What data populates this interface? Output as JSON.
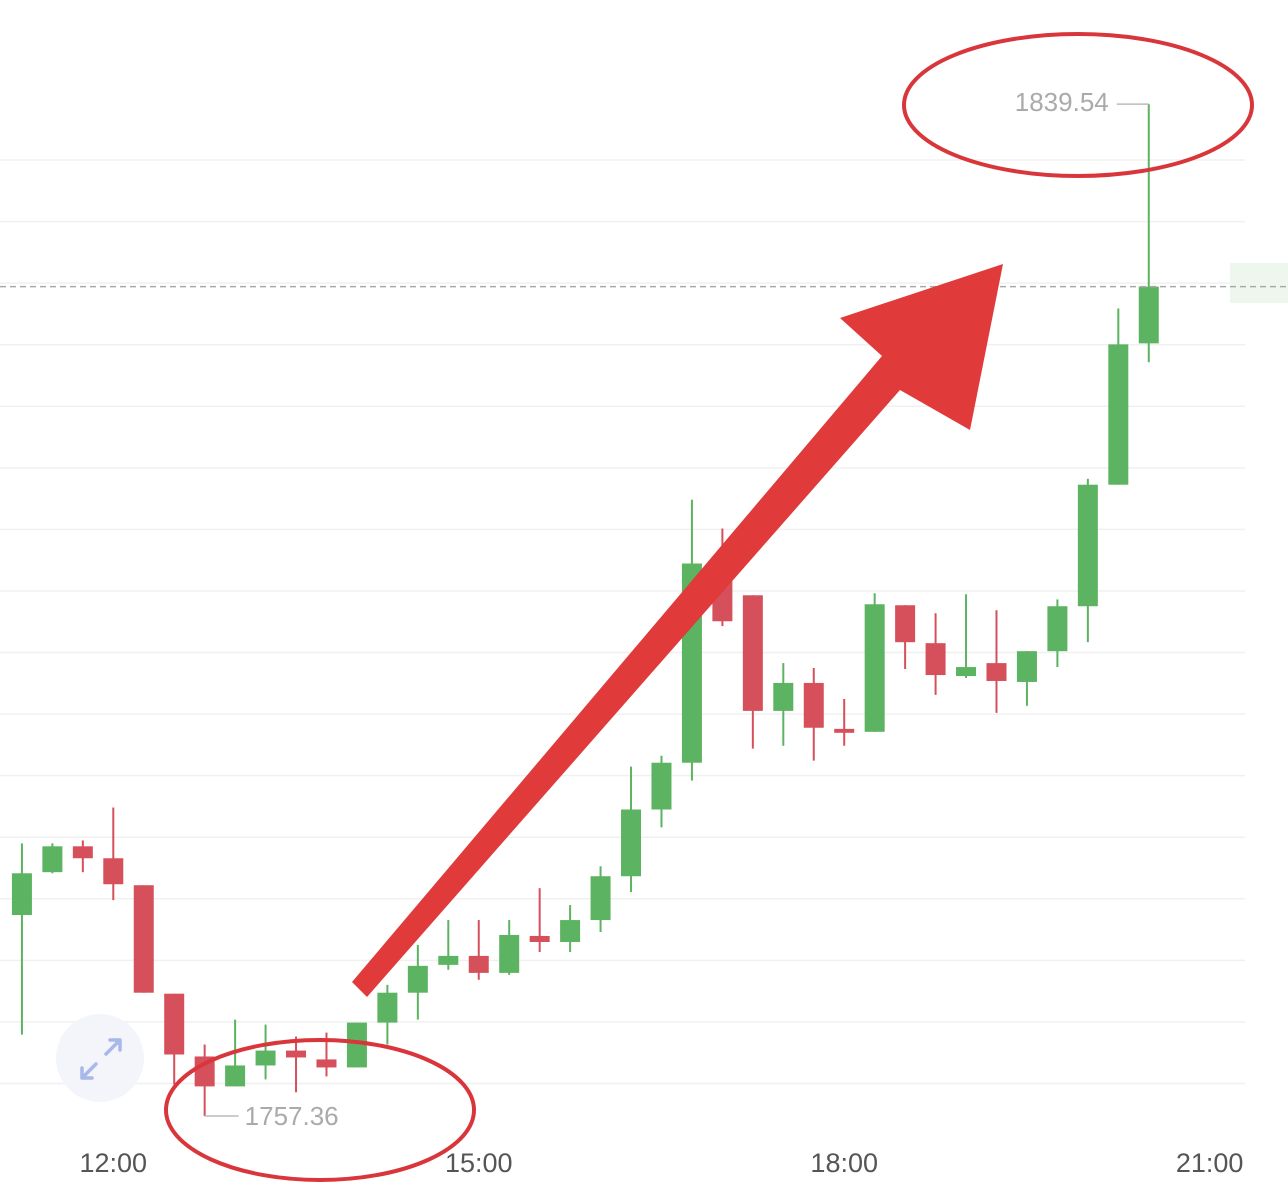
{
  "chart_data": {
    "type": "candlestick",
    "x": [
      11.25,
      11.5,
      11.75,
      12,
      12.25,
      12.5,
      12.75,
      13,
      13.25,
      13.5,
      13.75,
      14,
      14.25,
      14.5,
      14.75,
      15,
      15.25,
      15.5,
      15.75,
      16,
      16.25,
      16.5,
      16.75,
      17,
      17.25,
      17.5,
      17.75,
      18,
      18.25,
      18.5,
      18.75,
      19,
      19.25,
      19.5,
      19.75,
      20,
      20.25,
      20.5
    ],
    "open": [
      1773.68,
      1777.16,
      1779.26,
      1778.29,
      1776.1,
      1767.29,
      1762.19,
      1759.76,
      1761.46,
      1762.67,
      1761.95,
      1761.3,
      1764.94,
      1767.37,
      1769.63,
      1770.36,
      1768.98,
      1771.98,
      1771.49,
      1773.27,
      1776.83,
      1782.25,
      1786.05,
      1801.99,
      1799.65,
      1790.26,
      1792.53,
      1788.8,
      1788.56,
      1798.84,
      1795.76,
      1793.09,
      1794.14,
      1792.61,
      1795.11,
      1798.76,
      1808.63,
      1820.11
    ],
    "high": [
      1779.5,
      1779.5,
      1779.74,
      1782.41,
      1776.1,
      1767.29,
      1763.16,
      1765.18,
      1764.78,
      1763.81,
      1764.13,
      1764.94,
      1768.01,
      1771.25,
      1773.27,
      1773.27,
      1773.27,
      1775.86,
      1774.49,
      1777.64,
      1785.73,
      1786.62,
      1807.41,
      1805.07,
      1799.65,
      1794.14,
      1793.74,
      1791.23,
      1799.81,
      1798.84,
      1798.19,
      1799.73,
      1798.43,
      1795.11,
      1799.32,
      1809.11,
      1822.94,
      1839.54
    ],
    "low": [
      1763.97,
      1777.07,
      1777.16,
      1774.89,
      1767.37,
      1759.92,
      1757.36,
      1759.76,
      1760.33,
      1759.28,
      1760.57,
      1761.3,
      1763.16,
      1765.18,
      1769.23,
      1768.42,
      1768.82,
      1770.68,
      1770.68,
      1772.3,
      1775.54,
      1780.8,
      1784.6,
      1797.14,
      1787.19,
      1787.43,
      1786.22,
      1787.43,
      1788.56,
      1793.66,
      1791.56,
      1792.93,
      1790.1,
      1790.67,
      1793.82,
      1795.84,
      1808.63,
      1818.58
    ],
    "close": [
      1777.07,
      1779.26,
      1778.29,
      1776.18,
      1767.37,
      1762.35,
      1759.76,
      1761.46,
      1762.67,
      1762.11,
      1761.3,
      1764.94,
      1767.37,
      1769.55,
      1770.36,
      1768.98,
      1772.06,
      1771.49,
      1773.27,
      1776.83,
      1782.25,
      1786.05,
      1802.23,
      1797.54,
      1790.26,
      1792.53,
      1788.89,
      1788.48,
      1798.92,
      1795.84,
      1793.17,
      1793.82,
      1792.69,
      1795.11,
      1798.76,
      1808.63,
      1820.03,
      1824.72
    ],
    "up_color": "#5cb361",
    "down_color": "#d5505a",
    "xlim": [
      11.07,
      21.29
    ],
    "ylim": [
      1755,
      1848
    ],
    "xticks": [
      {
        "value": 12,
        "label": "12:00"
      },
      {
        "value": 15,
        "label": "15:00"
      },
      {
        "value": 18,
        "label": "18:00"
      },
      {
        "value": 21,
        "label": "21:00"
      }
    ],
    "yticks": [
      1760,
      1765,
      1770,
      1775,
      1780,
      1785,
      1790,
      1795,
      1800,
      1805,
      1810,
      1815,
      1820,
      1825,
      1830,
      1835
    ],
    "grid": true
  }
}
